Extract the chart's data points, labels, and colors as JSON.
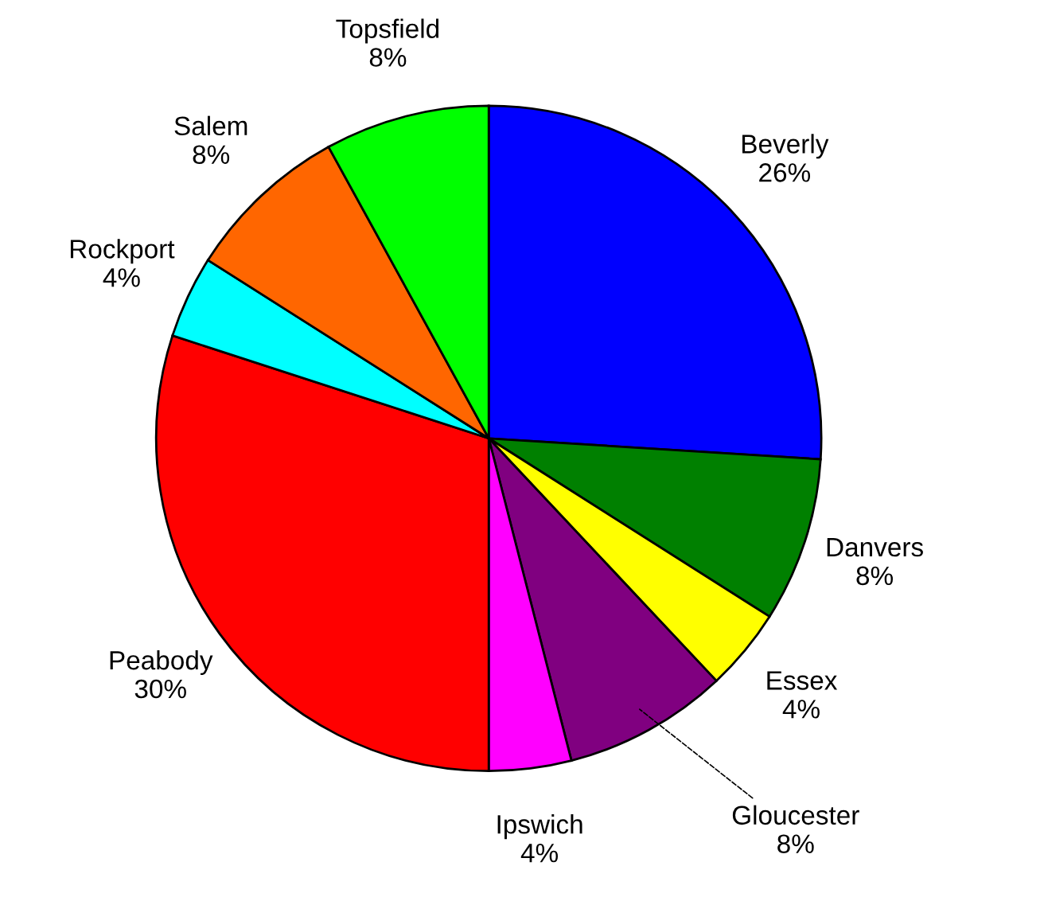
{
  "chart_data": {
    "type": "pie",
    "categories": [
      "Beverly",
      "Danvers",
      "Essex",
      "Gloucester",
      "Ipswich",
      "Peabody",
      "Rockport",
      "Salem",
      "Topsfield"
    ],
    "values": [
      26,
      8,
      4,
      8,
      4,
      30,
      4,
      8,
      8
    ],
    "value_labels": [
      "26%",
      "8%",
      "4%",
      "8%",
      "4%",
      "30%",
      "4%",
      "8%",
      "8%"
    ],
    "colors": [
      "#0000ff",
      "#008000",
      "#ffff00",
      "#800080",
      "#ff00ff",
      "#ff0000",
      "#00ffff",
      "#ff6600",
      "#00ff00"
    ]
  }
}
